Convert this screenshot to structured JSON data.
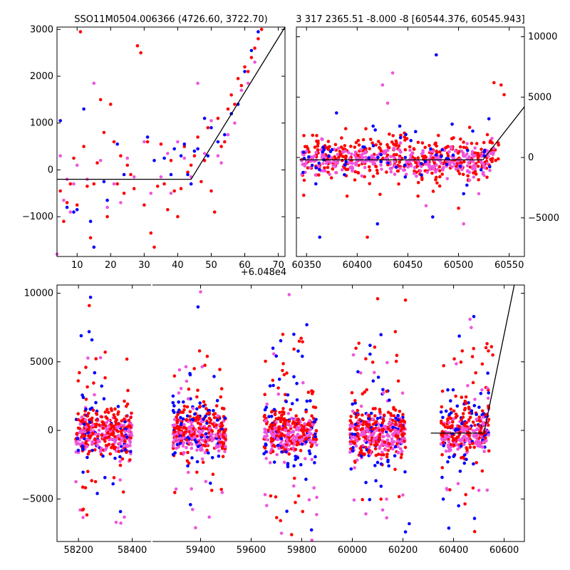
{
  "figure": {
    "title_left": "SSO11M0504.006366 (4726.60, 3722.70)",
    "title_right": "3 317 2365.51 -8.000 -8 [60544.376, 60545.943]",
    "offset_label": "+6.048e4"
  },
  "colors": {
    "red": "#ff0000",
    "blue": "#0000ff",
    "pink": "#ee55dd",
    "line": "#000000"
  },
  "chart_data": [
    {
      "type": "scatter",
      "panel": "top-left",
      "xlim": [
        4,
        72
      ],
      "ylim": [
        -1850,
        3050
      ],
      "xticks": [
        10,
        20,
        30,
        40,
        50,
        60,
        70
      ],
      "yticks": [
        -1000,
        0,
        1000,
        2000,
        3000
      ],
      "xtick_labels": [
        "10",
        "20",
        "30",
        "40",
        "50",
        "60",
        "70"
      ],
      "ytick_labels": [
        "−1000",
        "0",
        "1000",
        "2000",
        "3000"
      ],
      "x_offset": 60480,
      "model_line": [
        [
          4,
          -200
        ],
        [
          44,
          -200
        ],
        [
          72,
          3050
        ]
      ],
      "series": [
        {
          "color": "red",
          "points": [
            [
              5,
              -450
            ],
            [
              6,
              -1100
            ],
            [
              7,
              -700
            ],
            [
              8,
              -300
            ],
            [
              9,
              250
            ],
            [
              10,
              -750
            ],
            [
              11,
              2950
            ],
            [
              12,
              500
            ],
            [
              13,
              -350
            ],
            [
              14,
              -1450
            ],
            [
              15,
              -300
            ],
            [
              16,
              150
            ],
            [
              17,
              1500
            ],
            [
              18,
              800
            ],
            [
              19,
              -1000
            ],
            [
              20,
              1400
            ],
            [
              21,
              600
            ],
            [
              22,
              -300
            ],
            [
              23,
              300
            ],
            [
              24,
              -500
            ],
            [
              25,
              100
            ],
            [
              26,
              -100
            ],
            [
              27,
              -400
            ],
            [
              28,
              2650
            ],
            [
              29,
              2500
            ],
            [
              30,
              -750
            ],
            [
              31,
              600
            ],
            [
              32,
              -1350
            ],
            [
              33,
              -1650
            ],
            [
              34,
              -350
            ],
            [
              35,
              550
            ],
            [
              36,
              -300
            ],
            [
              37,
              -850
            ],
            [
              38,
              200
            ],
            [
              39,
              -450
            ],
            [
              40,
              -1000
            ],
            [
              41,
              -400
            ],
            [
              42,
              500
            ],
            [
              43,
              -50
            ],
            [
              44,
              100
            ],
            [
              45,
              300
            ],
            [
              46,
              700
            ],
            [
              47,
              -250
            ],
            [
              48,
              200
            ],
            [
              49,
              900
            ],
            [
              50,
              -450
            ],
            [
              51,
              -900
            ],
            [
              52,
              1100
            ],
            [
              53,
              500
            ],
            [
              54,
              600
            ],
            [
              55,
              1300
            ],
            [
              56,
              1600
            ],
            [
              57,
              1400
            ],
            [
              58,
              1950
            ],
            [
              59,
              1800
            ],
            [
              60,
              2200
            ],
            [
              61,
              2100
            ],
            [
              62,
              2400
            ],
            [
              63,
              2600
            ],
            [
              64,
              2800
            ],
            [
              65,
              3000
            ]
          ]
        },
        {
          "color": "blue",
          "points": [
            [
              5,
              1050
            ],
            [
              7,
              -800
            ],
            [
              9,
              -900
            ],
            [
              10,
              -850
            ],
            [
              12,
              1300
            ],
            [
              14,
              -1100
            ],
            [
              15,
              -1650
            ],
            [
              18,
              -250
            ],
            [
              19,
              -650
            ],
            [
              22,
              550
            ],
            [
              24,
              -100
            ],
            [
              31,
              700
            ],
            [
              33,
              200
            ],
            [
              36,
              250
            ],
            [
              38,
              -100
            ],
            [
              39,
              450
            ],
            [
              41,
              300
            ],
            [
              42,
              550
            ],
            [
              43,
              -100
            ],
            [
              44,
              -300
            ],
            [
              45,
              400
            ],
            [
              46,
              450
            ],
            [
              48,
              1100
            ],
            [
              49,
              300
            ],
            [
              50,
              900
            ],
            [
              52,
              600
            ],
            [
              54,
              750
            ],
            [
              56,
              1200
            ],
            [
              58,
              1400
            ],
            [
              60,
              2100
            ],
            [
              62,
              2550
            ],
            [
              64,
              2950
            ]
          ]
        },
        {
          "color": "pink",
          "points": [
            [
              4,
              -1800
            ],
            [
              5,
              300
            ],
            [
              6,
              -650
            ],
            [
              7,
              -200
            ],
            [
              8,
              -900
            ],
            [
              9,
              -300
            ],
            [
              10,
              100
            ],
            [
              13,
              -200
            ],
            [
              15,
              1850
            ],
            [
              17,
              200
            ],
            [
              19,
              -800
            ],
            [
              21,
              -300
            ],
            [
              23,
              -700
            ],
            [
              25,
              250
            ],
            [
              27,
              -150
            ],
            [
              30,
              600
            ],
            [
              32,
              -500
            ],
            [
              35,
              -150
            ],
            [
              37,
              350
            ],
            [
              38,
              -500
            ],
            [
              40,
              600
            ],
            [
              42,
              250
            ],
            [
              44,
              -150
            ],
            [
              46,
              1850
            ],
            [
              48,
              350
            ],
            [
              50,
              1050
            ],
            [
              52,
              300
            ],
            [
              53,
              150
            ],
            [
              55,
              750
            ],
            [
              57,
              1000
            ],
            [
              59,
              1700
            ],
            [
              61,
              1850
            ],
            [
              63,
              2300
            ]
          ]
        }
      ]
    },
    {
      "type": "scatter",
      "panel": "top-right",
      "xlim": [
        60340,
        60565
      ],
      "ylim": [
        -8200,
        10800
      ],
      "xticks": [
        60350,
        60400,
        60450,
        60500,
        60550
      ],
      "yticks": [
        -5000,
        0,
        5000,
        10000
      ],
      "xtick_labels": [
        "60350",
        "60400",
        "60450",
        "60500",
        "60550"
      ],
      "ytick_labels": [
        "−5000",
        "0",
        "5000",
        "10000"
      ],
      "model_line": [
        [
          60343,
          -200
        ],
        [
          60524,
          -200
        ],
        [
          60565,
          4200
        ]
      ],
      "point_clouds": [
        {
          "color": "red",
          "center_band": [
            60345,
            60540
          ],
          "y_mean": 0,
          "y_spread": 900,
          "count": 380
        },
        {
          "color": "pink",
          "center_band": [
            60345,
            60535
          ],
          "y_mean": -300,
          "y_spread": 600,
          "count": 300
        },
        {
          "color": "blue",
          "center_band": [
            60345,
            60535
          ],
          "y_mean": -100,
          "y_spread": 1200,
          "count": 60
        }
      ],
      "outliers": [
        {
          "color": "blue",
          "points": [
            [
              60363,
              -6600
            ],
            [
              60442,
              2600
            ],
            [
              60453,
              1400
            ],
            [
              60478,
              8500
            ],
            [
              60505,
              -3000
            ],
            [
              60420,
              -5500
            ],
            [
              60530,
              3200
            ]
          ]
        },
        {
          "color": "pink",
          "points": [
            [
              60425,
              6000
            ],
            [
              60435,
              7000
            ],
            [
              60430,
              4500
            ],
            [
              60468,
              -4000
            ],
            [
              60505,
              -5500
            ],
            [
              60520,
              -3000
            ]
          ]
        },
        {
          "color": "red",
          "points": [
            [
              60390,
              -3200
            ],
            [
              60460,
              -3200
            ],
            [
              60410,
              -6600
            ],
            [
              60535,
              6200
            ],
            [
              60542,
              6000
            ],
            [
              60545,
              5200
            ],
            [
              60500,
              -4200
            ],
            [
              60475,
              -2800
            ]
          ]
        }
      ]
    },
    {
      "type": "scatter",
      "panel": "bottom",
      "ylim": [
        -8100,
        10600
      ],
      "yticks": [
        -5000,
        0,
        5000,
        10000
      ],
      "ytick_labels": [
        "−5000",
        "0",
        "5000",
        "10000"
      ],
      "segments": [
        {
          "xlim": [
            58120,
            58470
          ],
          "xticks": [
            58200,
            58400
          ],
          "xtick_labels": [
            "58200",
            "58400"
          ]
        },
        {
          "xlim": [
            59210,
            60680
          ],
          "xticks": [
            59400,
            59600,
            59800,
            60000,
            60200,
            60400,
            60600
          ],
          "xtick_labels": [
            "59400",
            "59600",
            "59800",
            "60000",
            "60200",
            "60400",
            "60600"
          ]
        }
      ],
      "model_line": [
        [
          60310,
          -200
        ],
        [
          60520,
          -200
        ],
        [
          60640,
          10600
        ]
      ],
      "seasons": [
        {
          "x_range": [
            58190,
            58400
          ],
          "count": 420
        },
        {
          "x_range": [
            59290,
            59500
          ],
          "count": 420
        },
        {
          "x_range": [
            59650,
            59860
          ],
          "count": 420
        },
        {
          "x_range": [
            59990,
            60210
          ],
          "count": 460
        },
        {
          "x_range": [
            60350,
            60540
          ],
          "count": 380
        }
      ],
      "outliers": [
        {
          "color": "blue",
          "points": [
            [
              58210,
              6900
            ],
            [
              58245,
              9700
            ],
            [
              58250,
              6600
            ],
            [
              58260,
              4200
            ],
            [
              59390,
              9000
            ],
            [
              59820,
              7700
            ],
            [
              60070,
              6200
            ],
            [
              60210,
              -7400
            ],
            [
              60225,
              -6800
            ],
            [
              60480,
              8300
            ],
            [
              60420,
              -5500
            ],
            [
              58270,
              -4600
            ]
          ]
        },
        {
          "color": "pink",
          "points": [
            [
              59400,
              10100
            ],
            [
              59750,
              9900
            ],
            [
              60465,
              8100
            ],
            [
              60470,
              7500
            ],
            [
              58340,
              -6700
            ],
            [
              59720,
              -7500
            ],
            [
              59840,
              -8000
            ],
            [
              60120,
              -5800
            ],
            [
              59380,
              -7100
            ]
          ]
        },
        {
          "color": "red",
          "points": [
            [
              58240,
              9100
            ],
            [
              58380,
              5200
            ],
            [
              59725,
              7000
            ],
            [
              59790,
              6500
            ],
            [
              60100,
              9600
            ],
            [
              60210,
              9500
            ],
            [
              60170,
              7200
            ],
            [
              58215,
              -5800
            ],
            [
              59760,
              -7600
            ],
            [
              60550,
              6100
            ],
            [
              60555,
              5500
            ]
          ]
        }
      ]
    }
  ]
}
